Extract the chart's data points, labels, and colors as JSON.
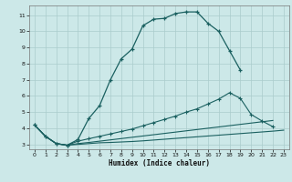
{
  "xlabel": "Humidex (Indice chaleur)",
  "background_color": "#cce8e8",
  "grid_color": "#aacccc",
  "line_color": "#1a6060",
  "xlim": [
    -0.5,
    23.5
  ],
  "ylim": [
    2.7,
    11.6
  ],
  "yticks": [
    3,
    4,
    5,
    6,
    7,
    8,
    9,
    10,
    11
  ],
  "xticks": [
    0,
    1,
    2,
    3,
    4,
    5,
    6,
    7,
    8,
    9,
    10,
    11,
    12,
    13,
    14,
    15,
    16,
    17,
    18,
    19,
    20,
    21,
    22,
    23
  ],
  "line1_x": [
    0,
    1,
    2,
    3,
    4,
    5,
    6,
    7,
    8,
    9,
    10,
    11,
    12,
    13,
    14,
    15,
    16,
    17,
    18,
    19
  ],
  "line1_y": [
    4.2,
    3.5,
    3.05,
    2.95,
    3.3,
    4.6,
    5.4,
    7.0,
    8.3,
    8.9,
    10.35,
    10.75,
    10.8,
    11.1,
    11.2,
    11.2,
    10.5,
    10.0,
    8.8,
    7.6
  ],
  "line1_markers": true,
  "line2_x": [
    0,
    1,
    2,
    3,
    4,
    5,
    6,
    7,
    8,
    9,
    10,
    11,
    12,
    13,
    14,
    15,
    16,
    17,
    18,
    19,
    20,
    21,
    22,
    23
  ],
  "line2_y": [
    4.2,
    3.5,
    3.05,
    2.95,
    3.2,
    3.35,
    3.5,
    3.65,
    3.8,
    3.95,
    4.15,
    4.35,
    4.55,
    4.75,
    5.0,
    5.2,
    5.5,
    5.8,
    6.2,
    5.85,
    4.85,
    4.45,
    4.1,
    null
  ],
  "line2_markers": true,
  "line3_x": [
    0,
    1,
    2,
    3,
    4,
    5,
    6,
    7,
    8,
    9,
    10,
    11,
    12,
    13,
    14,
    15,
    16,
    17,
    18,
    19,
    20,
    21,
    22,
    23
  ],
  "line3_y": [
    4.2,
    3.5,
    3.05,
    2.95,
    3.05,
    3.12,
    3.2,
    3.28,
    3.36,
    3.44,
    3.52,
    3.6,
    3.68,
    3.76,
    3.84,
    3.92,
    4.0,
    4.08,
    4.16,
    4.24,
    4.32,
    4.4,
    4.48,
    null
  ],
  "line3_markers": false,
  "line4_x": [
    0,
    1,
    2,
    3,
    4,
    5,
    6,
    7,
    8,
    9,
    10,
    11,
    12,
    13,
    14,
    15,
    16,
    17,
    18,
    19,
    20,
    21,
    22,
    23
  ],
  "line4_y": [
    4.2,
    3.5,
    3.05,
    2.95,
    3.0,
    3.05,
    3.1,
    3.12,
    3.15,
    3.18,
    3.22,
    3.27,
    3.32,
    3.37,
    3.42,
    3.47,
    3.52,
    3.57,
    3.62,
    3.67,
    3.72,
    3.77,
    3.82,
    3.88
  ],
  "line4_markers": false
}
